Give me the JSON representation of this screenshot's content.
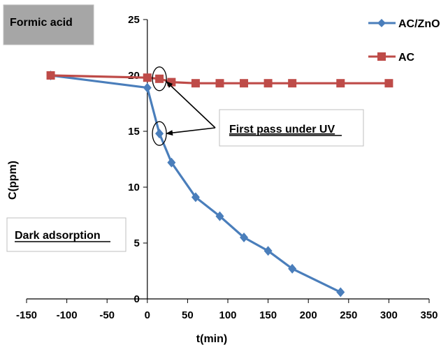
{
  "chart_data": {
    "type": "line",
    "title": "",
    "xlabel": "t(min)",
    "ylabel": "C(ppm)",
    "xlim": [
      -150,
      350
    ],
    "ylim": [
      0,
      25
    ],
    "xticks": [
      -150,
      -100,
      -50,
      0,
      50,
      100,
      150,
      200,
      250,
      300,
      350
    ],
    "yticks": [
      0,
      5,
      10,
      15,
      20,
      25
    ],
    "grid": false,
    "legend_position": "top-right",
    "series": [
      {
        "name": "AC/ZnO",
        "color": "#4a7ebb",
        "marker": "diamond",
        "x": [
          -120,
          0,
          15,
          30,
          60,
          90,
          120,
          150,
          180,
          240
        ],
        "y": [
          20.0,
          18.9,
          14.8,
          12.2,
          9.1,
          7.4,
          5.5,
          4.3,
          2.7,
          0.6
        ]
      },
      {
        "name": "AC",
        "color": "#be4b48",
        "marker": "square",
        "x": [
          -120,
          0,
          15,
          30,
          60,
          90,
          120,
          150,
          180,
          240,
          300
        ],
        "y": [
          20.0,
          19.8,
          19.7,
          19.4,
          19.3,
          19.3,
          19.3,
          19.3,
          19.3,
          19.3,
          19.3
        ]
      }
    ],
    "annotations": {
      "formic_acid": "Formic acid",
      "first_pass": "First pass under UV",
      "dark_adsorption": "Dark adsorption"
    },
    "annotation_colors": {
      "formic_box_fill": "#a6a6a6",
      "box_border": "#bfbfbf",
      "arrow": "#000000"
    },
    "callout_points": [
      {
        "x": 15,
        "y": 19.7
      },
      {
        "x": 15,
        "y": 14.8
      }
    ]
  }
}
